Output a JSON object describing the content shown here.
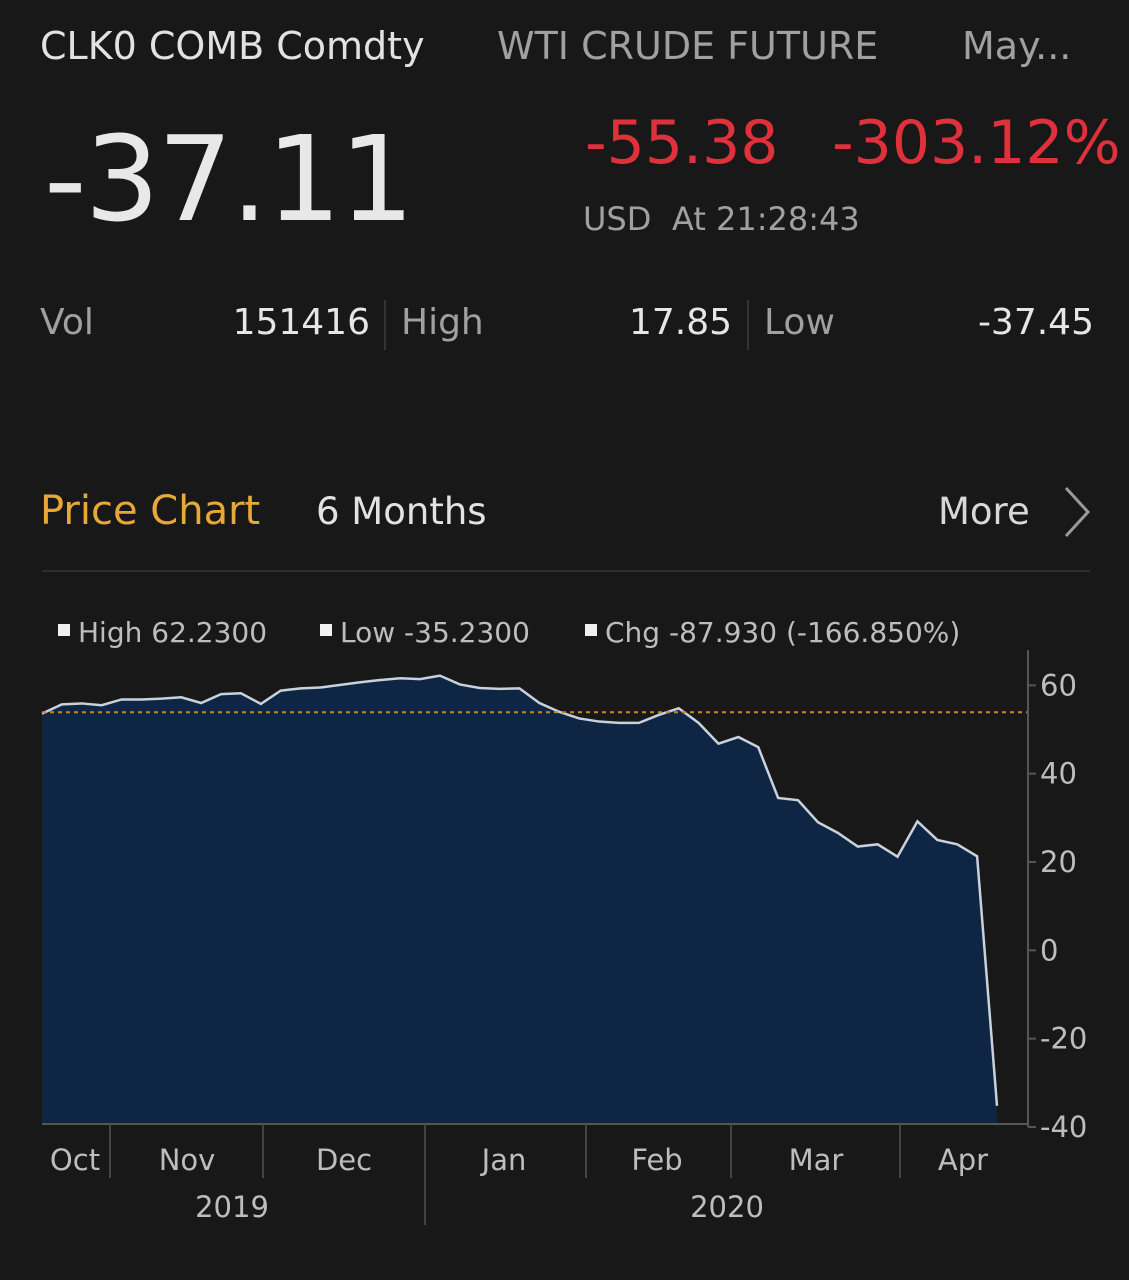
{
  "header": {
    "ticker": "CLK0 COMB Comdty",
    "name": "WTI CRUDE FUTURE",
    "month": "May..."
  },
  "quote": {
    "last": "-37.11",
    "change": "-55.38",
    "change_pct": "-303.12%",
    "currency": "USD",
    "time": "At 21:28:43"
  },
  "stats": [
    {
      "label": "Vol",
      "value": "151416"
    },
    {
      "label": "High",
      "value": "17.85"
    },
    {
      "label": "Low",
      "value": "-37.45"
    }
  ],
  "price_chart": {
    "title": "Price Chart",
    "period": "6 Months",
    "more": "More",
    "legend": [
      "High 62.2300",
      "Low -35.2300",
      "Chg -87.930 (-166.850%)"
    ],
    "chart": {
      "type": "area",
      "color": "#0e2644",
      "line_color": "#c9d1dc",
      "values": [
        53.6,
        55.7,
        55.9,
        55.5,
        56.8,
        56.8,
        57.0,
        57.3,
        56.0,
        58.0,
        58.2,
        55.8,
        58.8,
        59.3,
        59.5,
        60.1,
        60.7,
        61.2,
        61.6,
        61.4,
        62.2,
        60.2,
        59.4,
        59.2,
        59.3,
        56.0,
        54.0,
        52.5,
        51.8,
        51.5,
        51.5,
        53.3,
        54.8,
        51.5,
        46.8,
        48.3,
        46.0,
        34.5,
        34.0,
        29.0,
        26.6,
        23.5,
        24.0,
        21.2,
        29.2,
        25.0,
        24.0,
        21.3,
        -35.2
      ],
      "reference_line": 53.9,
      "reference_color": "#c8862a",
      "ylim": [
        -40,
        68
      ],
      "yticks": [
        60,
        40,
        20,
        0,
        -20,
        -40
      ],
      "months": [
        "Oct",
        "Nov",
        "Dec",
        "Jan",
        "Feb",
        "Mar",
        "Apr"
      ],
      "years": [
        "2019",
        "2020"
      ]
    }
  }
}
